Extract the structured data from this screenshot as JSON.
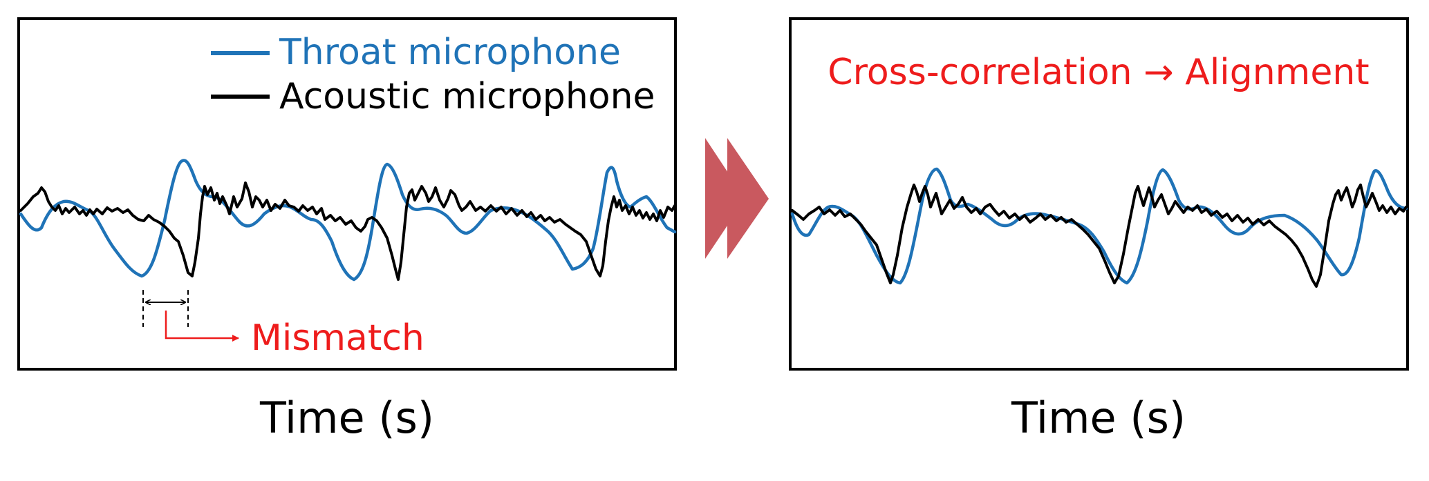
{
  "left_panel": {
    "legend": [
      {
        "label": "Throat microphone",
        "color": "#1f73b7"
      },
      {
        "label": "Acoustic microphone",
        "color": "#000000"
      }
    ],
    "annotation": "Mismatch",
    "xlabel": "Time (s)"
  },
  "arrow": {
    "color": "#c9595f"
  },
  "right_panel": {
    "title": "Cross-correlation → Alignment",
    "xlabel": "Time (s)"
  },
  "colors": {
    "throat": "#1f73b7",
    "acoustic": "#000000",
    "accent_red": "#ee1c1c",
    "frame": "#000000"
  }
}
